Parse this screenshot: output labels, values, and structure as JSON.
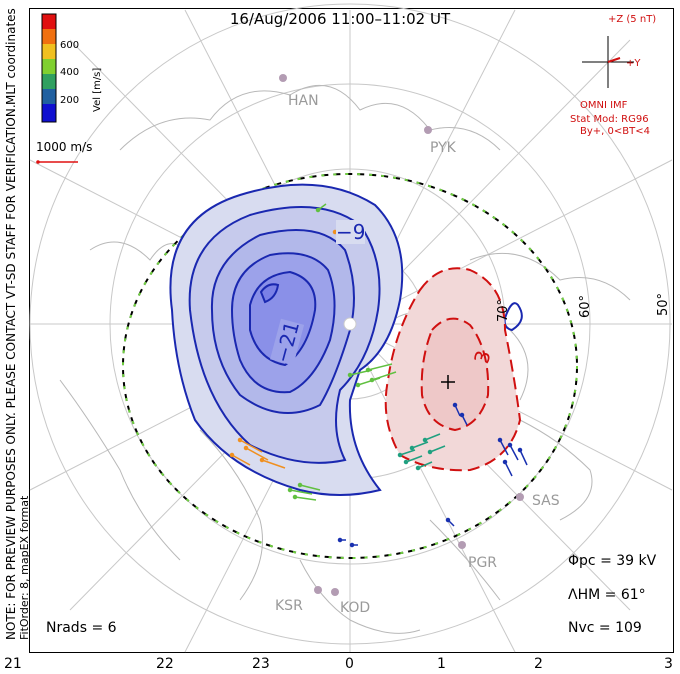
{
  "title": "16/Aug/2006 11:00–11:02 UT",
  "side_labels": {
    "coordinates": "MLT coordinates",
    "note": "NOTE: FOR PREVIEW PURPOSES ONLY. PLEASE CONTACT VT-SD STAFF FOR VERIFICATION.",
    "fit": "FitOrder: 8, mapEX format"
  },
  "colorbar": {
    "label": "Vel [m/s]",
    "ticks": [
      "600",
      "400",
      "200"
    ],
    "colors": [
      "#e01010",
      "#f07010",
      "#f0c020",
      "#80d030",
      "#30a060",
      "#2060a0",
      "#1010d0"
    ]
  },
  "scale_vector": {
    "label": "1000 m/s",
    "color": "#e01010"
  },
  "imf": {
    "z_label": "+Z (5 nT)",
    "y_label": "+Y",
    "source": "OMNI IMF",
    "model": "Stat Mod: RG96",
    "condition": "By+, 0<BT<4",
    "color": "#d01010"
  },
  "stations": [
    "HAN",
    "PYK",
    "SAS",
    "PGR",
    "KSR",
    "KOD"
  ],
  "latitude_labels": [
    "70°",
    "60°",
    "50°"
  ],
  "contour_labels": {
    "neg1": "−9",
    "neg2": "−21",
    "pos1": "3"
  },
  "stats": {
    "phi_pc_label": "Φpc",
    "phi_pc_value": "= 39 kV",
    "lambda_hm_label": "ΛHM",
    "lambda_hm_value": "= 61°",
    "nvc_label": "Nvc",
    "nvc_value": "= 109",
    "nrads_label": "Nrads",
    "nrads_value": "= 6"
  },
  "mlt_ticks": [
    "21",
    "22",
    "23",
    "0",
    "1",
    "2",
    "3"
  ]
}
